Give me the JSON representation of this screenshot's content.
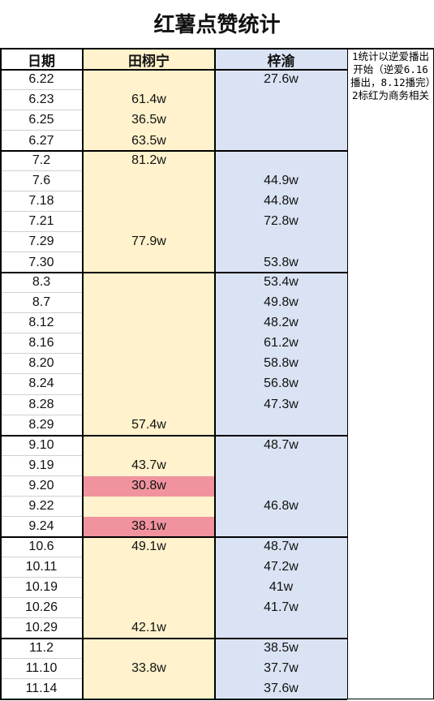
{
  "table": {
    "title": "红薯点赞统计",
    "headers": [
      "日期",
      "田栩宁",
      "梓渝"
    ],
    "notes": [
      "1统计以逆爱播出开始（逆爱6.16播出，8.12播完）",
      "2标红为商务相关"
    ],
    "highlight_color": "#f0939f",
    "groups": [
      {
        "rows": [
          {
            "date": "6.22",
            "tian": null,
            "zi": "27.6w"
          },
          {
            "date": "6.23",
            "tian": "61.4w",
            "zi": null
          },
          {
            "date": "6.25",
            "tian": "36.5w",
            "zi": null
          },
          {
            "date": "6.27",
            "tian": "63.5w",
            "zi": null
          }
        ]
      },
      {
        "rows": [
          {
            "date": "7.2",
            "tian": "81.2w",
            "zi": null
          },
          {
            "date": "7.6",
            "tian": null,
            "zi": "44.9w"
          },
          {
            "date": "7.18",
            "tian": null,
            "zi": "44.8w"
          },
          {
            "date": "7.21",
            "tian": null,
            "zi": "72.8w"
          },
          {
            "date": "7.29",
            "tian": "77.9w",
            "zi": null
          },
          {
            "date": "7.30",
            "tian": null,
            "zi": "53.8w"
          }
        ]
      },
      {
        "rows": [
          {
            "date": "8.3",
            "tian": null,
            "zi": "53.4w"
          },
          {
            "date": "8.7",
            "tian": null,
            "zi": "49.8w"
          },
          {
            "date": "8.12",
            "tian": null,
            "zi": "48.2w"
          },
          {
            "date": "8.16",
            "tian": null,
            "zi": "61.2w"
          },
          {
            "date": "8.20",
            "tian": null,
            "zi": "58.8w"
          },
          {
            "date": "8.24",
            "tian": null,
            "zi": "56.8w"
          },
          {
            "date": "8.28",
            "tian": null,
            "zi": "47.3w"
          },
          {
            "date": "8.29",
            "tian": "57.4w",
            "zi": null
          }
        ]
      },
      {
        "rows": [
          {
            "date": "9.10",
            "tian": null,
            "zi": "48.7w"
          },
          {
            "date": "9.19",
            "tian": "43.7w",
            "zi": null
          },
          {
            "date": "9.20",
            "tian": "30.8w",
            "zi": null,
            "highlight": true
          },
          {
            "date": "9.22",
            "tian": null,
            "zi": "46.8w"
          },
          {
            "date": "9.24",
            "tian": "38.1w",
            "zi": null,
            "highlight": true
          }
        ]
      },
      {
        "rows": [
          {
            "date": "10.6",
            "tian": "49.1w",
            "zi": "48.7w"
          },
          {
            "date": "10.11",
            "tian": null,
            "zi": "47.2w"
          },
          {
            "date": "10.19",
            "tian": null,
            "zi": "41w"
          },
          {
            "date": "10.26",
            "tian": null,
            "zi": "41.7w"
          },
          {
            "date": "10.29",
            "tian": "42.1w",
            "zi": null
          }
        ]
      },
      {
        "rows": [
          {
            "date": "11.2",
            "tian": null,
            "zi": "38.5w"
          },
          {
            "date": "11.10",
            "tian": "33.8w",
            "zi": "37.7w"
          },
          {
            "date": "11.14",
            "tian": null,
            "zi": "37.6w"
          }
        ]
      }
    ]
  }
}
